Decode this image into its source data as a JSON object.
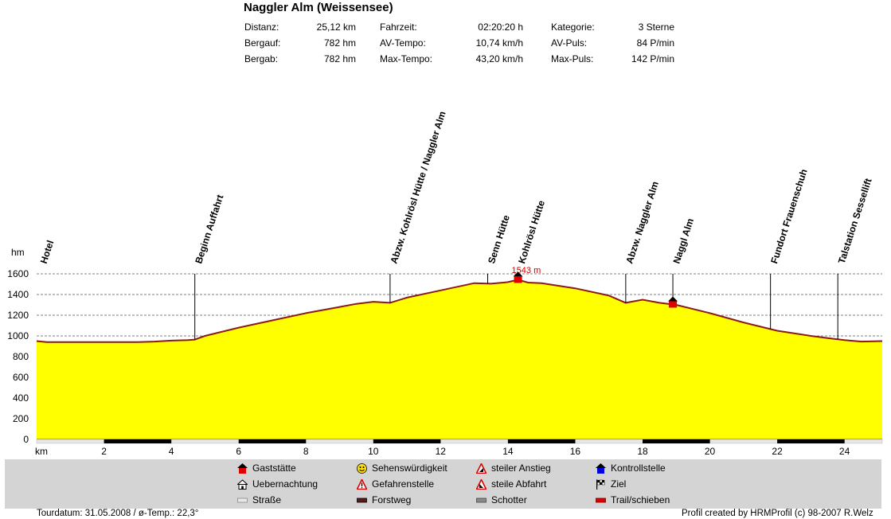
{
  "title": "Naggler Alm (Weissensee)",
  "stats": [
    {
      "label": "Distanz:",
      "value": "25,12 km"
    },
    {
      "label": "Bergauf:",
      "value": "782 hm"
    },
    {
      "label": "Bergab:",
      "value": "782 hm"
    },
    {
      "label": "Fahrzeit:",
      "value": "02:20:20 h"
    },
    {
      "label": "AV-Tempo:",
      "value": "10,74 km/h"
    },
    {
      "label": "Max-Tempo:",
      "value": "43,20 km/h"
    },
    {
      "label": "Kategorie:",
      "value": "3 Sterne"
    },
    {
      "label": "AV-Puls:",
      "value": "84 P/min"
    },
    {
      "label": "Max-Puls:",
      "value": "142 P/min"
    }
  ],
  "chart_data": {
    "type": "area",
    "ylabel": "hm",
    "xlabel": "km",
    "xlim": [
      0,
      25.12
    ],
    "ylim": [
      0,
      1600
    ],
    "yticks": [
      0,
      200,
      400,
      600,
      800,
      1000,
      1200,
      1400,
      1600
    ],
    "xticks": [
      2,
      4,
      6,
      8,
      10,
      12,
      14,
      16,
      18,
      20,
      22,
      24
    ],
    "grid": "horizontal dashed",
    "fill_color": "#ffff00",
    "line_color": "#8b1a1a",
    "x": [
      0,
      0.3,
      1,
      2,
      3,
      3.5,
      4,
      4.5,
      4.7,
      5,
      6,
      7,
      8,
      9,
      9.5,
      10,
      10.5,
      11,
      12,
      13,
      13.5,
      14,
      14.3,
      14.6,
      15,
      16,
      17,
      17.5,
      18,
      18.5,
      19,
      20,
      21,
      22,
      23,
      23.6,
      24,
      24.5,
      25.12
    ],
    "y": [
      950,
      940,
      940,
      940,
      940,
      945,
      955,
      960,
      965,
      1000,
      1080,
      1150,
      1220,
      1280,
      1310,
      1330,
      1320,
      1370,
      1440,
      1510,
      1505,
      1520,
      1543,
      1515,
      1510,
      1460,
      1390,
      1320,
      1350,
      1320,
      1300,
      1220,
      1130,
      1050,
      1000,
      975,
      960,
      945,
      950
    ],
    "peak_label": "1543 m",
    "peak_km": 14.3,
    "waypoints": [
      {
        "name": "Hotel",
        "km": 0.1
      },
      {
        "name": "Beginn Auffahrt",
        "km": 4.7
      },
      {
        "name": "Abzw. Kohlrösl Hütte / Naggler Alm",
        "km": 10.5
      },
      {
        "name": "Senn Hütte",
        "km": 13.4
      },
      {
        "name": "Kohlrösl Hütte",
        "km": 14.3
      },
      {
        "name": "Abzw. Naggler Alm",
        "km": 17.5
      },
      {
        "name": "Naggl Alm",
        "km": 18.9
      },
      {
        "name": "Fundort Frauenschuh",
        "km": 21.8
      },
      {
        "name": "Talstation Sessellift",
        "km": 23.8
      }
    ],
    "markers": [
      {
        "type": "gaststaette",
        "km": 14.3
      },
      {
        "type": "gaststaette",
        "km": 18.9
      }
    ],
    "trail_segments": [
      [
        2,
        4
      ],
      [
        6,
        8
      ],
      [
        10,
        12
      ],
      [
        14,
        16
      ],
      [
        18,
        20
      ],
      [
        22,
        24
      ]
    ]
  },
  "legend": [
    {
      "icon": "gaststaette-icon",
      "label": "Gaststätte"
    },
    {
      "icon": "sehenswuerdigkeit-icon",
      "label": "Sehenswürdigkeit"
    },
    {
      "icon": "steiler-anstieg-icon",
      "label": "steiler Anstieg"
    },
    {
      "icon": "kontrollstelle-icon",
      "label": "Kontrollstelle"
    },
    {
      "icon": "uebernachtung-icon",
      "label": "Uebernachtung"
    },
    {
      "icon": "gefahrenstelle-icon",
      "label": "Gefahrenstelle"
    },
    {
      "icon": "steile-abfahrt-icon",
      "label": "steile Abfahrt"
    },
    {
      "icon": "ziel-icon",
      "label": "Ziel"
    },
    {
      "icon": "strasse-icon",
      "label": "Straße"
    },
    {
      "icon": "forstweg-icon",
      "label": "Forstweg"
    },
    {
      "icon": "schotter-icon",
      "label": "Schotter"
    },
    {
      "icon": "trail-icon",
      "label": "Trail/schieben"
    }
  ],
  "footer": {
    "left": "Tourdatum: 31.05.2008  /  ø-Temp.: 22,3°",
    "right": "Profil created by HRMProfil (c) 98-2007 R.Welz"
  }
}
